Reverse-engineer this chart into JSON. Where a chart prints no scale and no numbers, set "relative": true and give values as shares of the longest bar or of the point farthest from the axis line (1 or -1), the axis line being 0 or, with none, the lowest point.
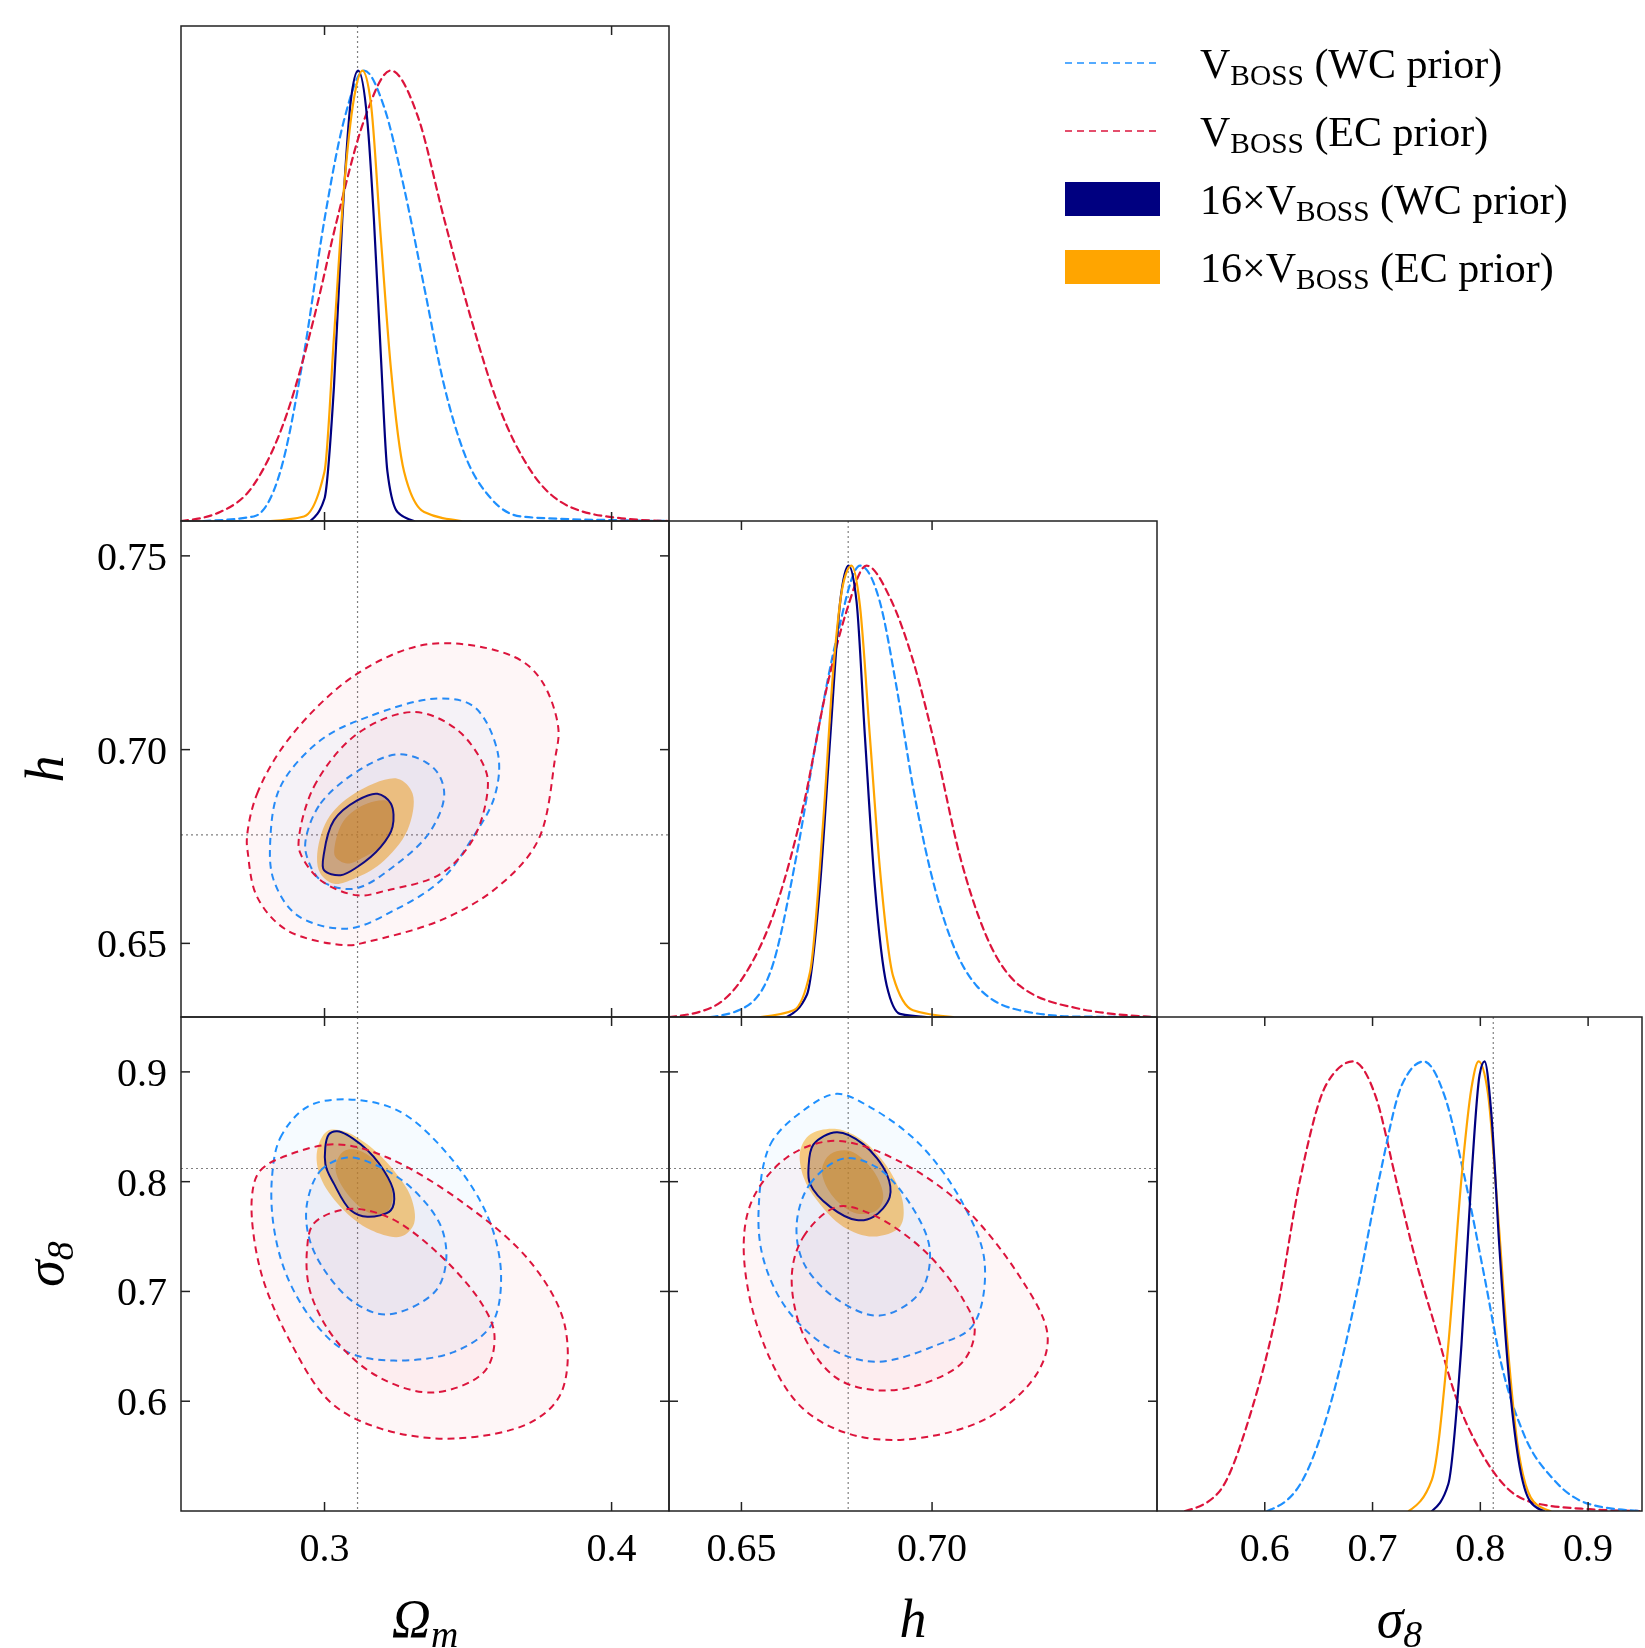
{
  "chart_data": [
    {
      "type": "line",
      "relative": true,
      "xlim": [
        0.25,
        0.42
      ],
      "xticks": [
        0.3,
        0.4
      ],
      "tick_labels": false,
      "legend": "right",
      "ref_lines": [
        {
          "axis": "x",
          "value": 0.3115,
          "color": "#808080",
          "line_style": "dotted"
        }
      ],
      "series": [
        {
          "name": "V$_{BOSS}$ (WC prior)",
          "color": "#1e90ff",
          "line_style": "dashed",
          "x": [
            0.2578,
            0.2753,
            0.2846,
            0.2928,
            0.3,
            0.3068,
            0.3138,
            0.3207,
            0.3277,
            0.3347,
            0.3417,
            0.3487,
            0.358,
            0.3685,
            0.386,
            0.4,
            0.42
          ],
          "values": [
            0,
            0.01,
            0.11,
            0.37,
            0.67,
            0.89,
            1,
            0.92,
            0.74,
            0.52,
            0.3,
            0.15,
            0.05,
            0.01,
            0.004,
            0.002,
            0
          ]
        },
        {
          "name": "V$_{BOSS}$ (EC prior)",
          "color": "#dc143c",
          "line_style": "dashed",
          "x": [
            0.25,
            0.2636,
            0.2753,
            0.287,
            0.2963,
            0.3044,
            0.3138,
            0.3231,
            0.3324,
            0.3417,
            0.351,
            0.3604,
            0.372,
            0.386,
            0.4035,
            0.42
          ],
          "values": [
            0,
            0.02,
            0.08,
            0.24,
            0.45,
            0.67,
            0.89,
            1,
            0.9,
            0.67,
            0.45,
            0.26,
            0.11,
            0.03,
            0.006,
            0
          ]
        },
        {
          "name": "16×V$_{BOSS}$ (WC prior)",
          "color": "#000080",
          "line_style": "solid",
          "x": [
            0.295,
            0.3,
            0.3033,
            0.3062,
            0.3091,
            0.3117,
            0.3149,
            0.3172,
            0.3196,
            0.3219,
            0.3254,
            0.3312
          ],
          "values": [
            0,
            0.05,
            0.3,
            0.67,
            0.93,
            1,
            0.89,
            0.67,
            0.37,
            0.11,
            0.02,
            0
          ]
        },
        {
          "name": "16×V$_{BOSS}$ (EC prior)",
          "color": "#ffa500",
          "line_style": "solid",
          "x": [
            0.2811,
            0.2928,
            0.3,
            0.3033,
            0.3068,
            0.3103,
            0.3132,
            0.3161,
            0.3196,
            0.3231,
            0.3277,
            0.3347,
            0.3476
          ],
          "values": [
            0,
            0.01,
            0.11,
            0.41,
            0.74,
            0.94,
            1,
            0.93,
            0.63,
            0.34,
            0.11,
            0.02,
            0
          ]
        }
      ]
    },
    {
      "type": "line",
      "xlim": [
        0.25,
        0.42
      ],
      "ylim": [
        0.631,
        0.759
      ],
      "xticks": [
        0.3,
        0.4
      ],
      "yticks": [
        0.65,
        {
          "value": 0.7,
          "label": "0.70"
        },
        0.75
      ],
      "tick_labels": "y",
      "ylabel": "h",
      "ref_lines": [
        {
          "axis": "x",
          "value": 0.3115,
          "color": "#808080",
          "line_style": "dotted"
        },
        {
          "axis": "y",
          "value": 0.678,
          "color": "#808080",
          "line_style": "dotted"
        }
      ],
      "series": [
        {
          "type": "area",
          "color": "#ffa500",
          "x": [
            0.2974,
            0.3009,
            0.3103,
            0.3254,
            0.3307,
            0.3289,
            0.3196,
            0.3103,
            0.3033,
            0.2986,
            0.2974
          ],
          "values": [
            0.6723,
            0.6818,
            0.6886,
            0.6925,
            0.6886,
            0.6792,
            0.6706,
            0.6667,
            0.6654,
            0.668,
            0.6723
          ]
        },
        {
          "type": "area",
          "color": "#ffa500",
          "x": [
            0.3035,
            0.3068,
            0.3149,
            0.3225,
            0.3237,
            0.3207,
            0.3138,
            0.3079,
            0.3038,
            0.3035
          ],
          "values": [
            0.6749,
            0.6818,
            0.6861,
            0.6865,
            0.6818,
            0.6758,
            0.6723,
            0.6706,
            0.6723,
            0.6749
          ]
        },
        {
          "type": "area",
          "color": "#000080",
          "line_style": "solid",
          "x": [
            0.2998,
            0.3033,
            0.3114,
            0.3184,
            0.3231,
            0.3237,
            0.3196,
            0.3114,
            0.3056,
            0.2998,
            0.2998
          ],
          "values": [
            0.6732,
            0.6818,
            0.6869,
            0.6886,
            0.6861,
            0.6801,
            0.6749,
            0.6697,
            0.6676,
            0.6689,
            0.6732
          ]
        },
        {
          "type": "area",
          "color": "#1e90ff",
          "line_style": "dashed",
          "x": [
            0.2811,
            0.2846,
            0.2986,
            0.3149,
            0.3394,
            0.3522,
            0.3604,
            0.3592,
            0.351,
            0.3406,
            0.3242,
            0.3079,
            0.2904,
            0.2823,
            0.2811
          ],
          "values": [
            0.6766,
            0.6904,
            0.7024,
            0.7084,
            0.7132,
            0.711,
            0.699,
            0.6878,
            0.6766,
            0.6663,
            0.6585,
            0.6538,
            0.6573,
            0.6663,
            0.6766
          ]
        },
        {
          "type": "area",
          "color": "#1e90ff",
          "line_style": "dashed",
          "x": [
            0.2934,
            0.2986,
            0.3138,
            0.3266,
            0.3382,
            0.3417,
            0.3371,
            0.3254,
            0.3103,
            0.2986,
            0.2939,
            0.2934
          ],
          "values": [
            0.6766,
            0.6861,
            0.6955,
            0.6988,
            0.6951,
            0.6886,
            0.6792,
            0.6706,
            0.6641,
            0.6663,
            0.6723,
            0.6766
          ]
        },
        {
          "type": "area",
          "color": "#dc143c",
          "line_style": "dashed",
          "x": [
            0.273,
            0.2765,
            0.2881,
            0.3114,
            0.3371,
            0.3662,
            0.3755,
            0.3814,
            0.3802,
            0.3744,
            0.3604,
            0.3406,
            0.3149,
            0.3079,
            0.2869,
            0.2765,
            0.2733,
            0.273
          ],
          "values": [
            0.6775,
            0.6886,
            0.7033,
            0.7196,
            0.7273,
            0.7239,
            0.7179,
            0.7058,
            0.6972,
            0.6766,
            0.6646,
            0.656,
            0.6504,
            0.6495,
            0.6534,
            0.662,
            0.6732,
            0.6775
          ]
        },
        {
          "type": "area",
          "color": "#dc143c",
          "line_style": "dashed",
          "x": [
            0.291,
            0.2963,
            0.3114,
            0.3312,
            0.3464,
            0.3557,
            0.3569,
            0.3522,
            0.3406,
            0.3219,
            0.3114,
            0.2986,
            0.2916,
            0.291
          ],
          "values": [
            0.6766,
            0.6904,
            0.7041,
            0.7097,
            0.705,
            0.6955,
            0.6904,
            0.6775,
            0.668,
            0.6637,
            0.6624,
            0.6663,
            0.6732,
            0.6766
          ]
        }
      ]
    },
    {
      "type": "line",
      "relative": true,
      "xlim": [
        0.631,
        0.759
      ],
      "xticks": [
        0.65,
        0.7
      ],
      "tick_labels": false,
      "ref_lines": [
        {
          "axis": "x",
          "value": 0.678,
          "color": "#808080",
          "line_style": "dotted"
        }
      ],
      "series": [
        {
          "color": "#1e90ff",
          "line_style": "dashed",
          "x": [
            0.6419,
            0.6506,
            0.6576,
            0.6645,
            0.6698,
            0.675,
            0.6811,
            0.6863,
            0.6907,
            0.695,
            0.6994,
            0.7046,
            0.7116,
            0.7229,
            0.7377,
            0.7586
          ],
          "values": [
            0,
            0.02,
            0.1,
            0.36,
            0.62,
            0.84,
            1,
            0.92,
            0.73,
            0.51,
            0.33,
            0.18,
            0.07,
            0.015,
            0.001,
            0
          ]
        },
        {
          "color": "#dc143c",
          "line_style": "dashed",
          "x": [
            0.631,
            0.6419,
            0.6506,
            0.6593,
            0.6663,
            0.6724,
            0.6776,
            0.6828,
            0.6889,
            0.695,
            0.7011,
            0.7072,
            0.7142,
            0.7229,
            0.7377,
            0.7586
          ],
          "values": [
            0,
            0.02,
            0.09,
            0.25,
            0.47,
            0.73,
            0.9,
            1,
            0.93,
            0.79,
            0.59,
            0.36,
            0.18,
            0.07,
            0.02,
            0
          ]
        },
        {
          "color": "#000080",
          "line_style": "solid",
          "x": [
            0.6619,
            0.6672,
            0.6706,
            0.6733,
            0.6759,
            0.6781,
            0.6802,
            0.6824,
            0.685,
            0.6881,
            0.6916,
            0.6985
          ],
          "values": [
            0,
            0.05,
            0.29,
            0.62,
            0.92,
            1,
            0.92,
            0.62,
            0.29,
            0.07,
            0.007,
            0
          ]
        },
        {
          "color": "#ffa500",
          "line_style": "solid",
          "x": [
            0.655,
            0.6637,
            0.668,
            0.6715,
            0.6741,
            0.6767,
            0.6789,
            0.6811,
            0.6837,
            0.6863,
            0.6898,
            0.695,
            0.7055
          ],
          "values": [
            0,
            0.015,
            0.1,
            0.44,
            0.77,
            0.96,
            1,
            0.91,
            0.62,
            0.33,
            0.09,
            0.015,
            0
          ]
        }
      ]
    },
    {
      "type": "line",
      "xlim": [
        0.25,
        0.42
      ],
      "ylim": [
        0.5,
        0.95
      ],
      "xticks": [
        0.3,
        0.4
      ],
      "yticks": [
        0.6,
        0.7,
        0.8,
        0.9
      ],
      "xlabel": "Ω$_{m}$",
      "ylabel": "σ$_{8}$",
      "ref_lines": [
        {
          "axis": "x",
          "value": 0.3115,
          "color": "#808080",
          "line_style": "dotted"
        },
        {
          "axis": "y",
          "value": 0.812,
          "color": "#808080",
          "line_style": "dotted"
        }
      ],
      "series": [
        {
          "type": "area",
          "color": "#ffa500",
          "x": [
            0.2974,
            0.3009,
            0.3068,
            0.3149,
            0.3242,
            0.3301,
            0.3312,
            0.3266,
            0.3161,
            0.3056,
            0.2986,
            0.2974
          ],
          "values": [
            0.828,
            0.846,
            0.846,
            0.834,
            0.81,
            0.786,
            0.762,
            0.75,
            0.756,
            0.777,
            0.804,
            0.828
          ]
        },
        {
          "type": "area",
          "color": "#ffa500",
          "x": [
            0.3038,
            0.3068,
            0.3126,
            0.3196,
            0.3237,
            0.3219,
            0.3161,
            0.3079,
            0.3038
          ],
          "values": [
            0.813,
            0.828,
            0.828,
            0.813,
            0.789,
            0.773,
            0.771,
            0.789,
            0.813
          ]
        },
        {
          "type": "area",
          "color": "#000080",
          "line_style": "solid",
          "x": [
            0.3003,
            0.3015,
            0.3044,
            0.3126,
            0.3207,
            0.3242,
            0.3231,
            0.3149,
            0.3091,
            0.3033,
            0.3003
          ],
          "values": [
            0.816,
            0.843,
            0.846,
            0.834,
            0.81,
            0.789,
            0.774,
            0.768,
            0.774,
            0.798,
            0.816
          ]
        },
        {
          "type": "area",
          "color": "#1e90ff",
          "line_style": "dashed",
          "x": [
            0.2817,
            0.2846,
            0.2939,
            0.3068,
            0.3254,
            0.3429,
            0.3569,
            0.3615,
            0.358,
            0.3452,
            0.3242,
            0.3079,
            0.2963,
            0.2869,
            0.2823,
            0.2817
          ],
          "values": [
            0.804,
            0.84,
            0.868,
            0.875,
            0.865,
            0.825,
            0.768,
            0.714,
            0.669,
            0.645,
            0.637,
            0.645,
            0.672,
            0.714,
            0.759,
            0.804
          ]
        },
        {
          "type": "area",
          "color": "#1e90ff",
          "line_style": "dashed",
          "x": [
            0.2939,
            0.2986,
            0.3079,
            0.3196,
            0.3312,
            0.3406,
            0.3423,
            0.3382,
            0.3219,
            0.3103,
            0.2998,
            0.2945,
            0.2939
          ],
          "values": [
            0.78,
            0.81,
            0.822,
            0.813,
            0.792,
            0.759,
            0.726,
            0.699,
            0.679,
            0.69,
            0.72,
            0.75,
            0.78
          ]
        },
        {
          "type": "area",
          "color": "#dc143c",
          "line_style": "dashed",
          "x": [
            0.2747,
            0.2776,
            0.2881,
            0.3044,
            0.3219,
            0.3487,
            0.372,
            0.3837,
            0.3825,
            0.372,
            0.3452,
            0.3196,
            0.3021,
            0.2881,
            0.2776,
            0.2747
          ],
          "values": [
            0.786,
            0.81,
            0.825,
            0.834,
            0.822,
            0.78,
            0.726,
            0.669,
            0.608,
            0.581,
            0.566,
            0.575,
            0.599,
            0.654,
            0.72,
            0.786
          ]
        },
        {
          "type": "area",
          "color": "#dc143c",
          "line_style": "dashed",
          "x": [
            0.2939,
            0.2963,
            0.3079,
            0.3219,
            0.3382,
            0.3545,
            0.3592,
            0.3557,
            0.3382,
            0.3196,
            0.3044,
            0.2951,
            0.2939
          ],
          "values": [
            0.738,
            0.762,
            0.775,
            0.768,
            0.738,
            0.69,
            0.66,
            0.627,
            0.608,
            0.621,
            0.654,
            0.699,
            0.738
          ]
        }
      ]
    },
    {
      "type": "line",
      "xlim": [
        0.631,
        0.759
      ],
      "ylim": [
        0.5,
        0.95
      ],
      "xticks": [
        0.65,
        {
          "value": 0.7,
          "label": "0.70"
        }
      ],
      "yticks": [
        0.6,
        0.7,
        0.8,
        0.9
      ],
      "tick_labels": "x",
      "xlabel": "h",
      "ref_lines": [
        {
          "axis": "x",
          "value": 0.678,
          "color": "#808080",
          "line_style": "dotted"
        },
        {
          "axis": "y",
          "value": 0.812,
          "color": "#808080",
          "line_style": "dotted"
        }
      ],
      "series": [
        {
          "type": "area",
          "color": "#ffa500",
          "x": [
            0.6654,
            0.668,
            0.675,
            0.682,
            0.6889,
            0.6924,
            0.6916,
            0.6846,
            0.6767,
            0.6698,
            0.6663,
            0.6654
          ],
          "values": [
            0.828,
            0.843,
            0.848,
            0.837,
            0.81,
            0.78,
            0.759,
            0.75,
            0.759,
            0.783,
            0.804,
            0.828
          ]
        },
        {
          "type": "area",
          "color": "#ffa500",
          "x": [
            0.6711,
            0.6733,
            0.6785,
            0.6846,
            0.6872,
            0.6855,
            0.6802,
            0.6741,
            0.6711
          ],
          "values": [
            0.81,
            0.825,
            0.828,
            0.81,
            0.786,
            0.774,
            0.771,
            0.786,
            0.81
          ]
        },
        {
          "type": "area",
          "color": "#000080",
          "line_style": "solid",
          "x": [
            0.6676,
            0.6689,
            0.675,
            0.682,
            0.6881,
            0.6889,
            0.6846,
            0.6802,
            0.6733,
            0.668,
            0.6676
          ],
          "values": [
            0.813,
            0.834,
            0.845,
            0.834,
            0.807,
            0.786,
            0.768,
            0.765,
            0.777,
            0.798,
            0.813
          ]
        },
        {
          "type": "area",
          "color": "#1e90ff",
          "line_style": "dashed",
          "x": [
            0.6545,
            0.6576,
            0.6663,
            0.675,
            0.6837,
            0.6968,
            0.7081,
            0.7138,
            0.7107,
            0.7011,
            0.6855,
            0.6733,
            0.6619,
            0.6558,
            0.6545
          ],
          "values": [
            0.774,
            0.834,
            0.865,
            0.88,
            0.868,
            0.834,
            0.78,
            0.726,
            0.669,
            0.651,
            0.636,
            0.648,
            0.684,
            0.729,
            0.774
          ]
        },
        {
          "type": "area",
          "color": "#1e90ff",
          "line_style": "dashed",
          "x": [
            0.6645,
            0.668,
            0.6767,
            0.6855,
            0.6942,
            0.6994,
            0.6968,
            0.6863,
            0.675,
            0.6663,
            0.6645
          ],
          "values": [
            0.762,
            0.798,
            0.821,
            0.813,
            0.78,
            0.738,
            0.699,
            0.678,
            0.693,
            0.726,
            0.762
          ]
        },
        {
          "type": "area",
          "color": "#dc143c",
          "line_style": "dashed",
          "x": [
            0.6506,
            0.6532,
            0.6619,
            0.6733,
            0.6855,
            0.7055,
            0.7229,
            0.7303,
            0.7273,
            0.7142,
            0.6924,
            0.6767,
            0.6645,
            0.6541,
            0.6506
          ],
          "values": [
            0.744,
            0.786,
            0.822,
            0.837,
            0.828,
            0.786,
            0.714,
            0.66,
            0.624,
            0.584,
            0.565,
            0.572,
            0.599,
            0.669,
            0.744
          ]
        },
        {
          "type": "area",
          "color": "#dc143c",
          "line_style": "dashed",
          "x": [
            0.6632,
            0.6663,
            0.675,
            0.6837,
            0.6977,
            0.7081,
            0.7112,
            0.7081,
            0.6968,
            0.6855,
            0.675,
            0.6663,
            0.6632
          ],
          "values": [
            0.714,
            0.75,
            0.777,
            0.771,
            0.738,
            0.693,
            0.666,
            0.636,
            0.615,
            0.61,
            0.621,
            0.66,
            0.714
          ]
        }
      ]
    },
    {
      "type": "line",
      "relative": true,
      "xlim": [
        0.5,
        0.95
      ],
      "xticks": [
        0.6,
        0.7,
        0.8,
        0.9
      ],
      "tick_labels": "x",
      "xlabel": "σ$_{8}$",
      "ref_lines": [
        {
          "axis": "x",
          "value": 0.812,
          "color": "#808080",
          "line_style": "dotted"
        }
      ],
      "series": [
        {
          "color": "#dc143c",
          "line_style": "dashed",
          "x": [
            0.5261,
            0.5567,
            0.5872,
            0.6116,
            0.633,
            0.6574,
            0.6818,
            0.7032,
            0.7215,
            0.7398,
            0.7581,
            0.7764,
            0.8009,
            0.8253,
            0.8558,
            0.9016,
            0.9474
          ],
          "values": [
            0,
            0.04,
            0.22,
            0.45,
            0.74,
            0.95,
            1,
            0.92,
            0.74,
            0.56,
            0.41,
            0.26,
            0.13,
            0.05,
            0.015,
            0.004,
            0
          ]
        },
        {
          "color": "#1e90ff",
          "line_style": "dashed",
          "x": [
            0.6024,
            0.633,
            0.6635,
            0.6849,
            0.7062,
            0.7276,
            0.7474,
            0.7673,
            0.7856,
            0.8039,
            0.8192,
            0.8405,
            0.868,
            0.9016,
            0.9474
          ],
          "values": [
            0,
            0.06,
            0.26,
            0.48,
            0.74,
            0.95,
            1,
            0.92,
            0.74,
            0.52,
            0.33,
            0.17,
            0.07,
            0.015,
            0
          ]
        },
        {
          "color": "#ffa500",
          "line_style": "solid",
          "x": [
            0.7337,
            0.7551,
            0.7703,
            0.7825,
            0.7917,
            0.7984,
            0.807,
            0.8161,
            0.8253,
            0.8344,
            0.8497,
            0.865
          ],
          "values": [
            0,
            0.07,
            0.37,
            0.74,
            0.94,
            1,
            0.93,
            0.67,
            0.37,
            0.15,
            0.02,
            0
          ]
        },
        {
          "color": "#000080",
          "line_style": "solid",
          "x": [
            0.7551,
            0.7703,
            0.7825,
            0.7917,
            0.7993,
            0.8039,
            0.81,
            0.8176,
            0.8253,
            0.8344,
            0.8466,
            0.8589
          ],
          "values": [
            0,
            0.06,
            0.37,
            0.74,
            0.97,
            1,
            0.89,
            0.59,
            0.33,
            0.13,
            0.02,
            0
          ]
        }
      ]
    }
  ]
}
